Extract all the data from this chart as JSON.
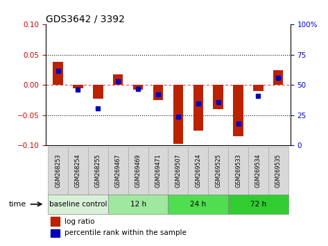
{
  "title": "GDS3642 / 3392",
  "samples": [
    "GSM268253",
    "GSM268254",
    "GSM268255",
    "GSM269467",
    "GSM269469",
    "GSM269471",
    "GSM269507",
    "GSM269524",
    "GSM269525",
    "GSM269533",
    "GSM269534",
    "GSM269535"
  ],
  "log_ratio": [
    0.038,
    -0.005,
    -0.022,
    0.018,
    -0.007,
    -0.025,
    -0.097,
    -0.075,
    -0.04,
    -0.085,
    -0.01,
    0.025
  ],
  "percentile_rank": [
    0.62,
    0.46,
    0.31,
    0.53,
    0.47,
    0.42,
    0.24,
    0.35,
    0.36,
    0.18,
    0.41,
    0.56
  ],
  "ylim": [
    -0.1,
    0.1
  ],
  "yticks_left": [
    -0.1,
    -0.05,
    0.0,
    0.05,
    0.1
  ],
  "dotted_lines_black": [
    0.05,
    -0.05
  ],
  "dotted_line_red": 0.0,
  "bar_color": "#bb2200",
  "dot_color": "#0000bb",
  "groups": [
    {
      "label": "baseline control",
      "start": 0,
      "end": 3,
      "color": "#d8f0d8"
    },
    {
      "label": "12 h",
      "start": 3,
      "end": 6,
      "color": "#a0e8a0"
    },
    {
      "label": "24 h",
      "start": 6,
      "end": 9,
      "color": "#50dd50"
    },
    {
      "label": "72 h",
      "start": 9,
      "end": 12,
      "color": "#30cc30"
    }
  ],
  "time_label": "time",
  "legend_log_ratio": "log ratio",
  "legend_percentile": "percentile rank within the sample",
  "bg_color": "#ffffff",
  "axis_color_left": "#cc0000",
  "axis_color_right": "#0000cc",
  "sample_box_color": "#d8d8d8",
  "bar_width": 0.5
}
